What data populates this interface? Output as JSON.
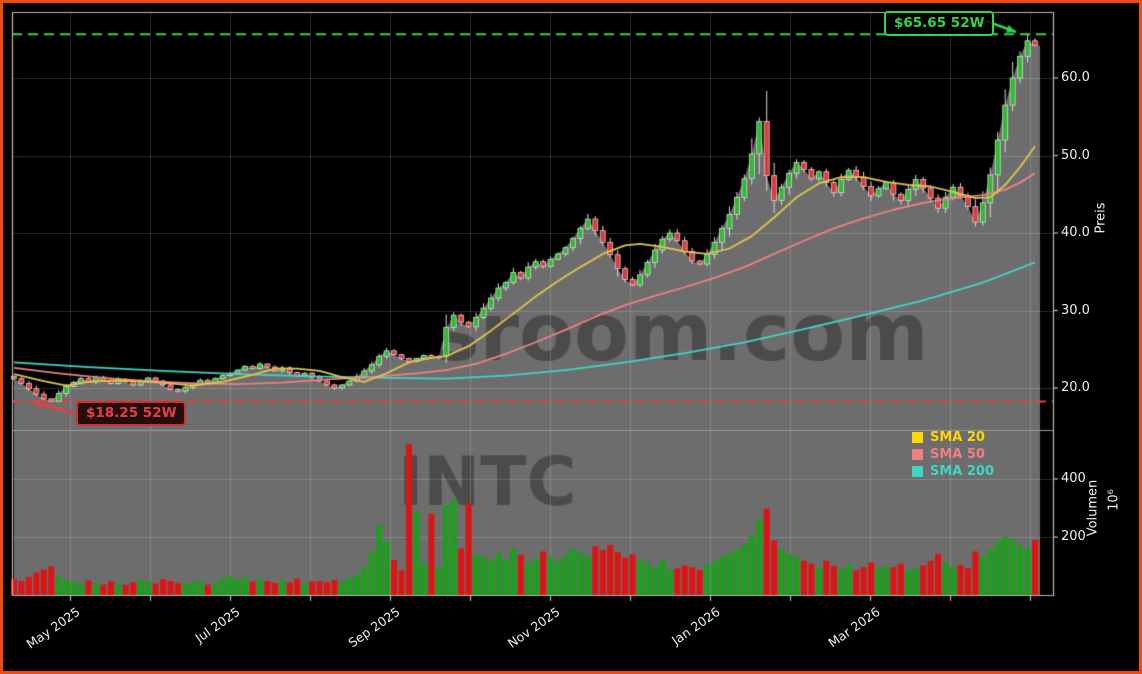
{
  "chart_data": {
    "type": "candlestick",
    "symbol_watermark": "INTC",
    "site_watermark": "sroom.com",
    "price_axis": {
      "label": "Preis",
      "ticks": [
        {
          "label": "20.0",
          "value": 20
        },
        {
          "label": "30.0",
          "value": 30
        },
        {
          "label": "40.0",
          "value": 40
        },
        {
          "label": "50.0",
          "value": 50
        },
        {
          "label": "60.0",
          "value": 60
        }
      ]
    },
    "volume_axis": {
      "label": "Volumen",
      "unit": "10⁶",
      "ticks": [
        {
          "label": "200",
          "value": 200
        },
        {
          "label": "400",
          "value": 400
        }
      ]
    },
    "x_axis": {
      "months": [
        "May 2025",
        null,
        "Jul 2025",
        null,
        "Sep 2025",
        null,
        "Nov 2025",
        null,
        "Jan 2026",
        null,
        "Mar 2026",
        null,
        null
      ]
    },
    "high_52w": {
      "value": 65.65,
      "label": "$65.65 52W",
      "color": "#32d54e"
    },
    "low_52w": {
      "value": 18.25,
      "label": "$18.25 52W",
      "color": "#e84040"
    },
    "legend": [
      {
        "label": "SMA 20",
        "color": "#ffd700"
      },
      {
        "label": "SMA 50",
        "color": "#f08080"
      },
      {
        "label": "SMA 200",
        "color": "#40d6c4"
      }
    ],
    "candles": {
      "first_open": 21.5,
      "closes": [
        21.2,
        20.6,
        19.9,
        19.2,
        18.6,
        18.3,
        19.3,
        20.2,
        20.7,
        21.2,
        20.8,
        21.4,
        21.0,
        20.6,
        21.1,
        20.8,
        20.4,
        20.9,
        21.3,
        20.9,
        20.4,
        19.8,
        19.6,
        20.1,
        20.6,
        21.0,
        20.7,
        21.2,
        21.6,
        21.9,
        22.3,
        22.8,
        22.5,
        23.1,
        22.7,
        22.2,
        22.6,
        22.0,
        21.6,
        21.9,
        21.4,
        20.9,
        20.4,
        20.0,
        20.4,
        20.9,
        21.5,
        22.2,
        23.0,
        24.1,
        24.8,
        24.3,
        23.8,
        23.4,
        23.8,
        24.2,
        23.9,
        24.1,
        27.8,
        29.4,
        28.5,
        27.9,
        29.1,
        30.3,
        31.6,
        32.9,
        33.6,
        34.9,
        34.2,
        35.6,
        36.3,
        35.7,
        36.6,
        37.3,
        38.1,
        39.3,
        40.6,
        41.8,
        40.3,
        38.8,
        37.2,
        35.4,
        34.0,
        33.3,
        34.6,
        36.2,
        37.8,
        39.2,
        40.0,
        39.0,
        37.6,
        36.4,
        36.0,
        37.2,
        38.8,
        40.6,
        42.4,
        44.6,
        47.0,
        50.2,
        54.4,
        47.4,
        44.2,
        45.9,
        47.7,
        49.1,
        48.2,
        47.0,
        47.9,
        46.5,
        45.2,
        46.9,
        48.1,
        47.2,
        46.0,
        44.8,
        45.7,
        46.5,
        45.0,
        44.2,
        45.6,
        46.9,
        45.8,
        44.5,
        43.2,
        44.6,
        45.9,
        44.8,
        43.4,
        41.4,
        43.9,
        47.5,
        52.0,
        56.5,
        60.0,
        62.8,
        64.8,
        64.2
      ],
      "volumes": [
        55,
        48,
        62,
        78,
        88,
        98,
        64,
        52,
        45,
        38,
        50,
        42,
        36,
        48,
        40,
        35,
        44,
        52,
        46,
        40,
        55,
        48,
        42,
        38,
        45,
        50,
        36,
        42,
        58,
        64,
        52,
        60,
        46,
        55,
        48,
        42,
        50,
        44,
        56,
        40,
        46,
        48,
        44,
        52,
        46,
        58,
        70,
        95,
        150,
        240,
        185,
        120,
        85,
        520,
        290,
        110,
        280,
        95,
        310,
        330,
        160,
        315,
        140,
        130,
        118,
        145,
        122,
        160,
        138,
        112,
        126,
        150,
        132,
        116,
        138,
        158,
        148,
        132,
        168,
        155,
        172,
        148,
        128,
        140,
        118,
        112,
        96,
        122,
        88,
        92,
        102,
        96,
        86,
        104,
        118,
        132,
        142,
        158,
        175,
        205,
        262,
        298,
        188,
        158,
        142,
        128,
        118,
        108,
        96,
        118,
        100,
        90,
        106,
        86,
        96,
        112,
        92,
        100,
        96,
        108,
        86,
        92,
        102,
        118,
        142,
        112,
        96,
        104,
        92,
        150,
        132,
        158,
        186,
        200,
        192,
        172,
        162,
        190
      ]
    },
    "sma20": [
      [
        0,
        21.8
      ],
      [
        4,
        20.9
      ],
      [
        7,
        20.3
      ],
      [
        10,
        20.8
      ],
      [
        14,
        21.0
      ],
      [
        18,
        20.8
      ],
      [
        21,
        20.6
      ],
      [
        24,
        20.3
      ],
      [
        28,
        20.8
      ],
      [
        32,
        21.7
      ],
      [
        35,
        22.5
      ],
      [
        38,
        22.5
      ],
      [
        41,
        22.2
      ],
      [
        44,
        21.4
      ],
      [
        47,
        20.8
      ],
      [
        50,
        21.9
      ],
      [
        53,
        23.3
      ],
      [
        56,
        23.9
      ],
      [
        58,
        24.1
      ],
      [
        61,
        25.4
      ],
      [
        64,
        27.4
      ],
      [
        67,
        29.6
      ],
      [
        70,
        31.8
      ],
      [
        73,
        33.8
      ],
      [
        76,
        35.6
      ],
      [
        79,
        37.3
      ],
      [
        82,
        38.4
      ],
      [
        84,
        38.6
      ],
      [
        87,
        38.2
      ],
      [
        90,
        37.6
      ],
      [
        93,
        37.3
      ],
      [
        96,
        38.0
      ],
      [
        99,
        39.6
      ],
      [
        102,
        42.0
      ],
      [
        105,
        44.6
      ],
      [
        108,
        46.4
      ],
      [
        111,
        47.2
      ],
      [
        114,
        47.2
      ],
      [
        117,
        46.6
      ],
      [
        120,
        46.2
      ],
      [
        123,
        46.0
      ],
      [
        126,
        45.3
      ],
      [
        129,
        44.5
      ],
      [
        131,
        44.6
      ],
      [
        133,
        46.2
      ],
      [
        135,
        48.5
      ],
      [
        137,
        51.2
      ]
    ],
    "sma50": [
      [
        0,
        22.6
      ],
      [
        6,
        21.9
      ],
      [
        12,
        21.3
      ],
      [
        18,
        20.9
      ],
      [
        24,
        20.6
      ],
      [
        30,
        20.5
      ],
      [
        36,
        20.7
      ],
      [
        42,
        21.1
      ],
      [
        48,
        21.4
      ],
      [
        54,
        21.9
      ],
      [
        58,
        22.3
      ],
      [
        62,
        23.1
      ],
      [
        66,
        24.4
      ],
      [
        70,
        25.9
      ],
      [
        74,
        27.5
      ],
      [
        78,
        29.2
      ],
      [
        82,
        30.7
      ],
      [
        86,
        31.9
      ],
      [
        90,
        33.0
      ],
      [
        94,
        34.2
      ],
      [
        98,
        35.6
      ],
      [
        102,
        37.3
      ],
      [
        106,
        39.0
      ],
      [
        110,
        40.6
      ],
      [
        114,
        41.9
      ],
      [
        118,
        43.0
      ],
      [
        122,
        43.9
      ],
      [
        126,
        44.5
      ],
      [
        130,
        44.9
      ],
      [
        133,
        45.6
      ],
      [
        135,
        46.5
      ],
      [
        137,
        47.7
      ]
    ],
    "sma200": [
      [
        0,
        23.3
      ],
      [
        10,
        22.7
      ],
      [
        20,
        22.2
      ],
      [
        30,
        21.8
      ],
      [
        40,
        21.5
      ],
      [
        50,
        21.3
      ],
      [
        58,
        21.2
      ],
      [
        66,
        21.6
      ],
      [
        74,
        22.3
      ],
      [
        82,
        23.3
      ],
      [
        90,
        24.5
      ],
      [
        98,
        25.9
      ],
      [
        106,
        27.6
      ],
      [
        114,
        29.4
      ],
      [
        122,
        31.3
      ],
      [
        130,
        33.6
      ],
      [
        137,
        36.2
      ]
    ],
    "colors": {
      "background": "#000000",
      "area_fill": "#6d6d6d",
      "candle_up": "#2fba30",
      "candle_down": "#e03a3a",
      "volume_up": "#1d9e1d",
      "volume_down": "#dd1414",
      "border": "#f04a0c",
      "grid": "rgba(255,255,255,0.17)",
      "spine": "#b8b8b8"
    }
  }
}
